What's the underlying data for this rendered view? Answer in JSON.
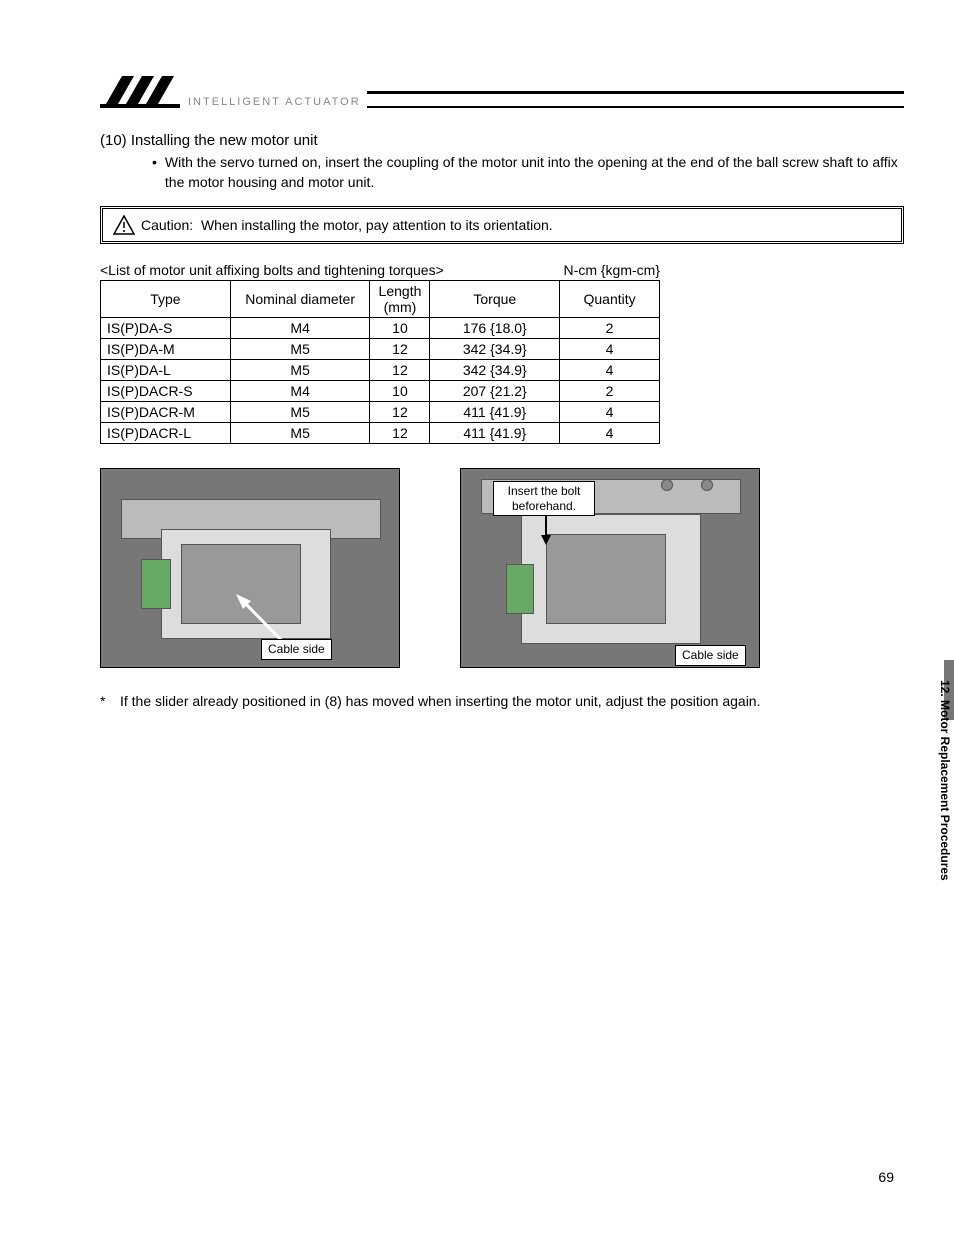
{
  "header": {
    "brand": "INTELLIGENT ACTUATOR"
  },
  "section": {
    "number": "(10)",
    "title": "Installing the new motor unit",
    "bullet": "With the servo turned on, insert the coupling of the motor unit into the opening at the end of the ball screw shaft to affix the motor housing and motor unit."
  },
  "caution": {
    "label": "Caution:",
    "text": "When installing the motor, pay attention to its orientation."
  },
  "table": {
    "caption": "<List of motor unit affixing bolts and tightening torques>",
    "unit": "N-cm {kgm-cm}",
    "columns": {
      "type": "Type",
      "nominal": "Nominal diameter",
      "length": "Length (mm)",
      "torque": "Torque",
      "quantity": "Quantity"
    },
    "rows": [
      {
        "type": "IS(P)DA-S",
        "nominal": "M4",
        "length": "10",
        "torque": "176 {18.0}",
        "quantity": "2"
      },
      {
        "type": "IS(P)DA-M",
        "nominal": "M5",
        "length": "12",
        "torque": "342 {34.9}",
        "quantity": "4"
      },
      {
        "type": "IS(P)DA-L",
        "nominal": "M5",
        "length": "12",
        "torque": "342 {34.9}",
        "quantity": "4"
      },
      {
        "type": "IS(P)DACR-S",
        "nominal": "M4",
        "length": "10",
        "torque": "207 {21.2}",
        "quantity": "2"
      },
      {
        "type": "IS(P)DACR-M",
        "nominal": "M5",
        "length": "12",
        "torque": "411 {41.9}",
        "quantity": "4"
      },
      {
        "type": "IS(P)DACR-L",
        "nominal": "M5",
        "length": "12",
        "torque": "411 {41.9}",
        "quantity": "4"
      }
    ]
  },
  "figures": {
    "left": {
      "callout": "Cable side"
    },
    "right": {
      "callout_top": "Insert the bolt beforehand.",
      "callout_bot": "Cable side"
    }
  },
  "footnote": {
    "marker": "*",
    "text": "If the slider already positioned in (8) has moved when inserting the motor unit, adjust the position again."
  },
  "side_tab": "12. Motor Replacement Procedures",
  "page_number": "69",
  "colors": {
    "text": "#000000",
    "photo_bg": "#777777",
    "mech": "#cccccc",
    "side_bar": "#777777"
  }
}
